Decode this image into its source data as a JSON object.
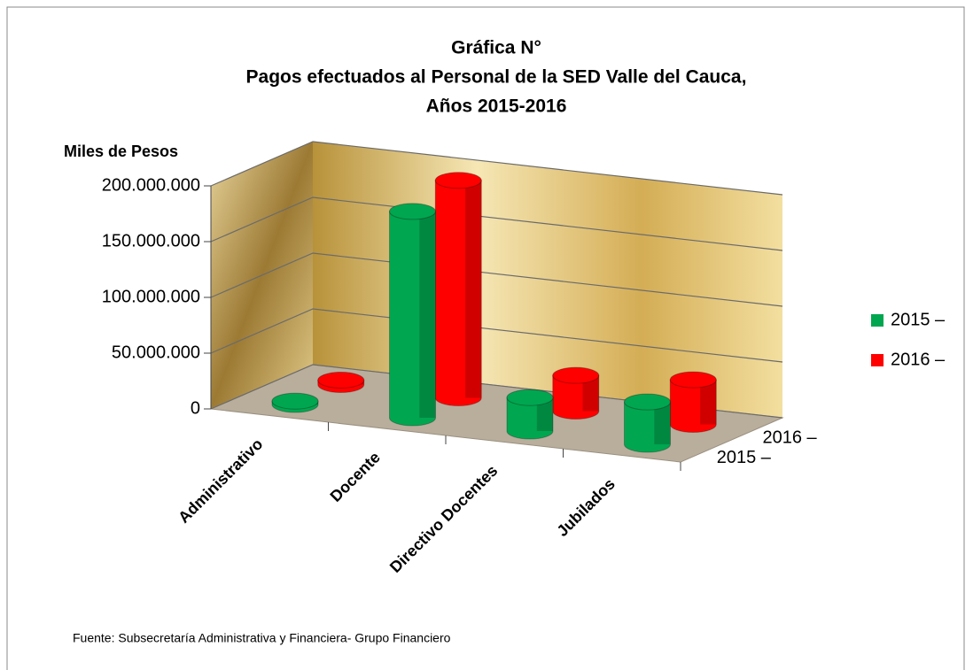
{
  "chart_data": {
    "type": "bar3d",
    "title_lines": [
      "Gráfica N°",
      "Pagos efectuados al Personal de la SED Valle del Cauca,",
      "Años 2015-2016"
    ],
    "ylabel": "Miles de Pesos",
    "categories": [
      "Administrativo",
      "Docente",
      "Directivo Docentes",
      "Jubilados"
    ],
    "series": [
      {
        "name": "2015 –",
        "color": "#00a650",
        "values": [
          3000000,
          185000000,
          30000000,
          38000000
        ]
      },
      {
        "name": "2016 –",
        "color": "#ff0000",
        "values": [
          4000000,
          195000000,
          32000000,
          40000000
        ]
      }
    ],
    "ylim": [
      0,
      200000000
    ],
    "yticks": [
      0,
      {
        "value": 50000000,
        "label": "50.000.000"
      },
      {
        "value": 100000000,
        "label": "100.000.000"
      },
      {
        "value": 150000000,
        "label": "150.000.000"
      },
      {
        "value": 200000000,
        "label": "200.000.000"
      }
    ],
    "grid": true,
    "legend": "right",
    "source": "Fuente: Subsecretaría Administrativa y Financiera- Grupo Financiero"
  }
}
